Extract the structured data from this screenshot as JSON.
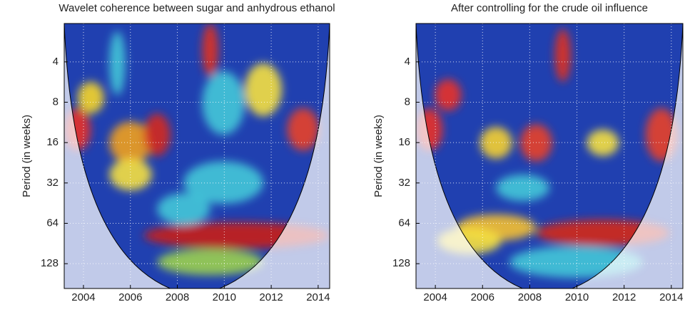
{
  "chart_data": [
    {
      "type": "wavelet-coherence",
      "title": "Wavelet coherence between sugar and anhydrous ethanol",
      "y_label": "Period (in weeks)",
      "xlim": [
        2003.18,
        2014.49
      ],
      "xticks": [
        2004,
        2006,
        2008,
        2010,
        2012,
        2014
      ],
      "ylim": [
        2.07,
        196
      ],
      "yticks": [
        4,
        8,
        16,
        32,
        64,
        128
      ],
      "y_log": true,
      "y_reversed": true,
      "grid": true
    },
    {
      "type": "wavelet-coherence",
      "title": "After controlling for the crude oil influence",
      "y_label": "Period (in weeks)",
      "xlim": [
        2003.18,
        2014.49
      ],
      "xticks": [
        2004,
        2006,
        2008,
        2010,
        2012,
        2014
      ],
      "ylim": [
        2.07,
        196
      ],
      "yticks": [
        4,
        8,
        16,
        32,
        64,
        128
      ],
      "y_log": true,
      "y_reversed": true,
      "grid": true
    }
  ]
}
